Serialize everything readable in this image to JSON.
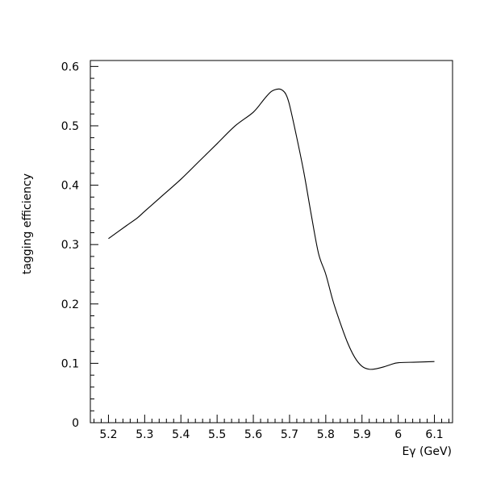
{
  "chart_data": {
    "type": "line",
    "title": "",
    "xlabel": "Eγ (GeV)",
    "ylabel": "tagging efficiency",
    "xlim": [
      5.15,
      6.15
    ],
    "ylim": [
      0,
      0.61
    ],
    "x_ticks": [
      5.2,
      5.3,
      5.4,
      5.5,
      5.6,
      5.7,
      5.8,
      5.9,
      6.0,
      6.1
    ],
    "x_tick_labels": [
      "5.2",
      "5.3",
      "5.4",
      "5.5",
      "5.6",
      "5.7",
      "5.8",
      "5.9",
      "6",
      "6.1"
    ],
    "y_ticks": [
      0,
      0.1,
      0.2,
      0.3,
      0.4,
      0.5,
      0.6
    ],
    "y_tick_labels": [
      "0",
      "0.1",
      "0.2",
      "0.3",
      "0.4",
      "0.5",
      "0.6"
    ],
    "grid": false,
    "line_color": "#000000",
    "series": [
      {
        "name": "",
        "x": [
          5.2,
          5.25,
          5.28,
          5.3,
          5.35,
          5.4,
          5.45,
          5.5,
          5.55,
          5.6,
          5.63,
          5.65,
          5.67,
          5.68,
          5.69,
          5.7,
          5.72,
          5.74,
          5.76,
          5.78,
          5.8,
          5.82,
          5.84,
          5.86,
          5.88,
          5.9,
          5.92,
          5.94,
          5.96,
          5.98,
          6.0,
          6.05,
          6.1
        ],
        "y": [
          0.31,
          0.332,
          0.345,
          0.356,
          0.383,
          0.41,
          0.44,
          0.47,
          0.5,
          0.523,
          0.545,
          0.558,
          0.562,
          0.56,
          0.553,
          0.535,
          0.48,
          0.42,
          0.35,
          0.285,
          0.25,
          0.205,
          0.168,
          0.135,
          0.11,
          0.095,
          0.09,
          0.091,
          0.094,
          0.098,
          0.101,
          0.102,
          0.103
        ]
      }
    ]
  }
}
